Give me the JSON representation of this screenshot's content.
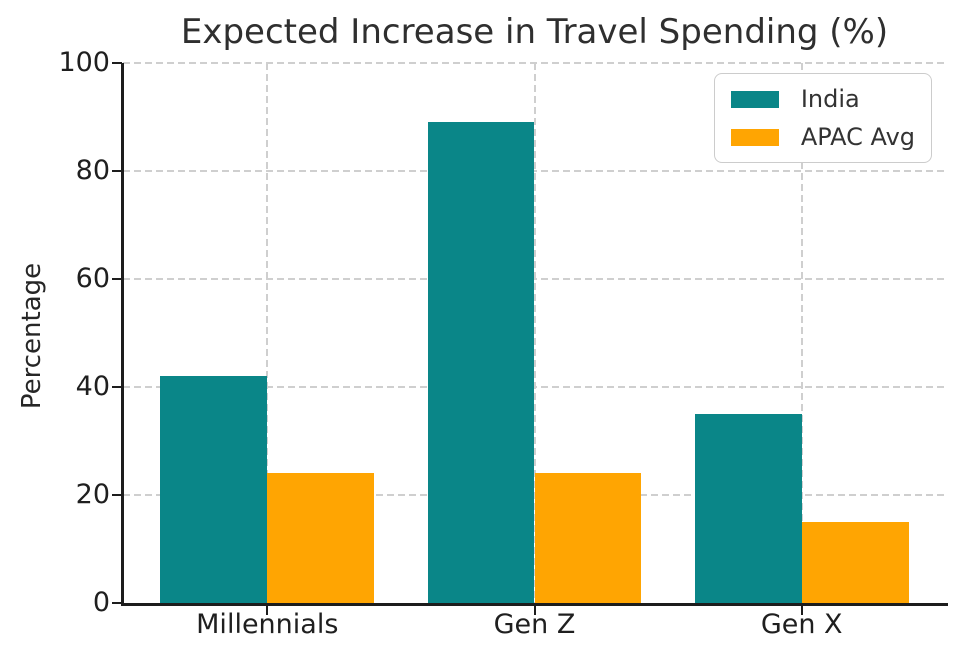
{
  "chart_data": {
    "type": "bar",
    "title": "Expected Increase in Travel Spending (%)",
    "xlabel": "",
    "ylabel": "Percentage",
    "categories": [
      "Millennials",
      "Gen Z",
      "Gen X"
    ],
    "series": [
      {
        "name": "India",
        "color": "#0a8688",
        "values": [
          42,
          89,
          35
        ]
      },
      {
        "name": "APAC Avg",
        "color": "#ffa502",
        "values": [
          24,
          24,
          15
        ]
      }
    ],
    "ylim": [
      0,
      100
    ],
    "yticks": [
      0,
      20,
      40,
      60,
      80,
      100
    ],
    "bar_width": 0.4,
    "grid": "dashed, horizontal and vertical, drawn behind bars",
    "legend_position": "upper right",
    "style": {
      "grid_color": "#cfcfcf",
      "text_color": "#262626",
      "spine_color": "#1d1d1d",
      "legend_border_color": "#cccccc",
      "background": "#ffffff"
    }
  }
}
